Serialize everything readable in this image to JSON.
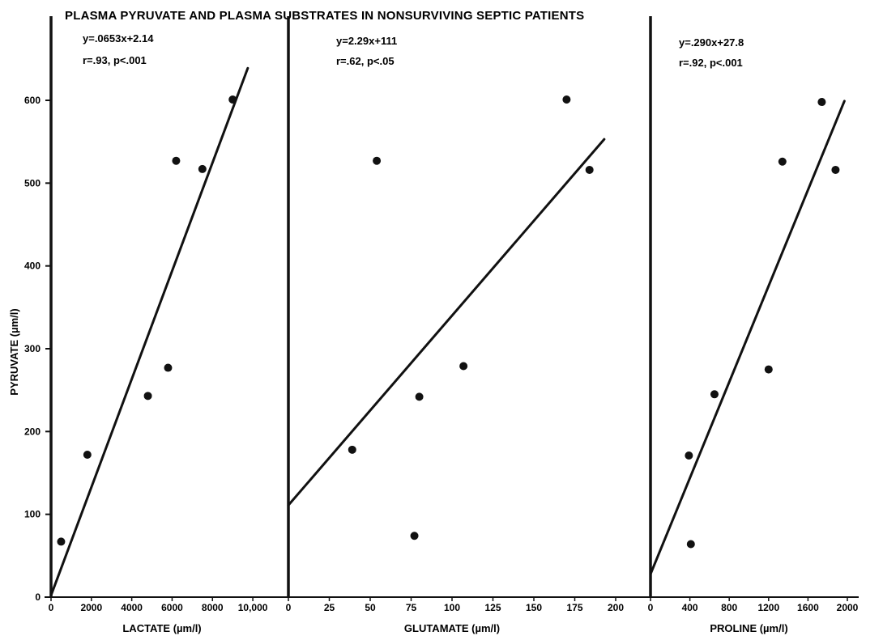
{
  "chart_data": {
    "type": "scatter",
    "title": "PLASMA PYRUVATE AND PLASMA SUBSTRATES IN NONSURVIVING SEPTIC PATIENTS",
    "ylabel": "PYRUVATE (µm/l)",
    "ylim": [
      0,
      650
    ],
    "yticks": [
      0,
      100,
      200,
      300,
      400,
      500,
      600
    ],
    "yticklabels": [
      "0",
      "100",
      "200",
      "300",
      "400",
      "500",
      "600"
    ],
    "grid": false,
    "panels": [
      {
        "xlabel": "LACTATE (µm/l)",
        "xlim": [
          0,
          11000
        ],
        "xticks": [
          0,
          2000,
          4000,
          6000,
          8000,
          10000
        ],
        "xticklabels": [
          "0",
          "2000",
          "4000",
          "6000",
          "8000",
          "10,000"
        ],
        "equation": "y=.0653x+2.14",
        "stats": "r=.93, p<.001",
        "fit": {
          "slope": 0.0653,
          "intercept": 2.14,
          "x_end": 9750
        },
        "points": [
          {
            "x": 500,
            "y": 67
          },
          {
            "x": 1800,
            "y": 172
          },
          {
            "x": 4800,
            "y": 243
          },
          {
            "x": 5800,
            "y": 277
          },
          {
            "x": 6200,
            "y": 527
          },
          {
            "x": 7500,
            "y": 517
          },
          {
            "x": 9000,
            "y": 601
          }
        ]
      },
      {
        "xlabel": "GLUTAMATE (µm/l)",
        "xlim": [
          0,
          200
        ],
        "xticks": [
          0,
          25,
          50,
          75,
          100,
          125,
          150,
          175,
          200
        ],
        "xticklabels": [
          "0",
          "25",
          "50",
          "75",
          "100",
          "125",
          "150",
          "175",
          "200"
        ],
        "equation": "y=2.29x+111",
        "stats": "r=.62, p<.05",
        "fit": {
          "slope": 2.29,
          "intercept": 111,
          "x_end": 193
        },
        "points": [
          {
            "x": 39,
            "y": 178
          },
          {
            "x": 54,
            "y": 527
          },
          {
            "x": 77,
            "y": 74
          },
          {
            "x": 80,
            "y": 242
          },
          {
            "x": 107,
            "y": 279
          },
          {
            "x": 170,
            "y": 601
          },
          {
            "x": 184,
            "y": 516
          }
        ]
      },
      {
        "xlabel": "PROLINE (µm/l)",
        "xlim": [
          0,
          2000
        ],
        "xticks": [
          0,
          400,
          800,
          1200,
          1600,
          2000
        ],
        "xticklabels": [
          "0",
          "400",
          "800",
          "1200",
          "1600",
          "2000"
        ],
        "equation": "y=.290x+27.8",
        "stats": "r=.92, p<.001",
        "fit": {
          "slope": 0.29,
          "intercept": 27.8,
          "x_end": 1970
        },
        "points": [
          {
            "x": 390,
            "y": 171
          },
          {
            "x": 410,
            "y": 64
          },
          {
            "x": 650,
            "y": 245
          },
          {
            "x": 1200,
            "y": 275
          },
          {
            "x": 1340,
            "y": 526
          },
          {
            "x": 1740,
            "y": 598
          },
          {
            "x": 1880,
            "y": 516
          }
        ]
      }
    ]
  }
}
